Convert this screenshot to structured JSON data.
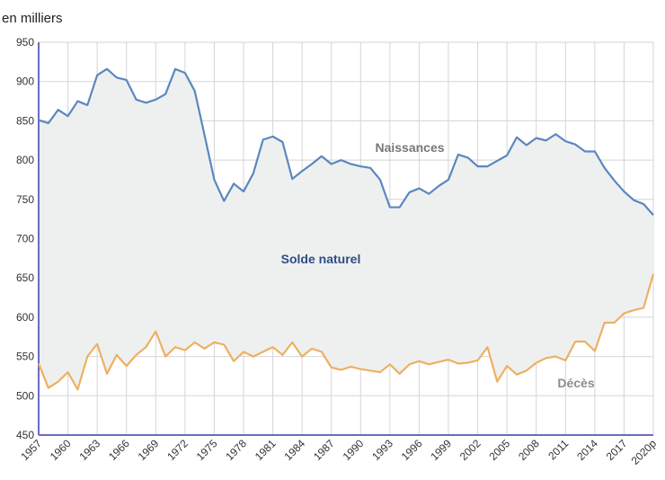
{
  "chart_data": {
    "type": "line",
    "unit_label": "en milliers",
    "ylim": [
      450,
      950
    ],
    "y_ticks": [
      450,
      500,
      550,
      600,
      650,
      700,
      750,
      800,
      850,
      900,
      950
    ],
    "x": [
      1957,
      1958,
      1959,
      1960,
      1961,
      1962,
      1963,
      1964,
      1965,
      1966,
      1967,
      1968,
      1969,
      1970,
      1971,
      1972,
      1973,
      1974,
      1975,
      1976,
      1977,
      1978,
      1979,
      1980,
      1981,
      1982,
      1983,
      1984,
      1985,
      1986,
      1987,
      1988,
      1989,
      1990,
      1991,
      1992,
      1993,
      1994,
      1995,
      1996,
      1997,
      1998,
      1999,
      2000,
      2001,
      2002,
      2003,
      2004,
      2005,
      2006,
      2007,
      2008,
      2009,
      2010,
      2011,
      2012,
      2013,
      2014,
      2015,
      2016,
      2017,
      2018,
      2019,
      2020
    ],
    "x_tick_labels": [
      "1957",
      "1960",
      "1963",
      "1966",
      "1969",
      "1972",
      "1975",
      "1978",
      "1981",
      "1984",
      "1987",
      "1990",
      "1993",
      "1996",
      "1999",
      "2002",
      "2005",
      "2008",
      "2011",
      "2014",
      "2017",
      "2020p"
    ],
    "x_tick_years": [
      1957,
      1960,
      1963,
      1966,
      1969,
      1972,
      1975,
      1978,
      1981,
      1984,
      1987,
      1990,
      1993,
      1996,
      1999,
      2002,
      2005,
      2008,
      2011,
      2014,
      2017,
      2020
    ],
    "grid": true,
    "series": [
      {
        "name": "Naissances",
        "color": "#5b87c0",
        "values": [
          851,
          847,
          864,
          856,
          875,
          870,
          908,
          916,
          905,
          902,
          877,
          873,
          877,
          884,
          916,
          911,
          888,
          832,
          775,
          748,
          770,
          760,
          783,
          826,
          830,
          823,
          776,
          786,
          795,
          805,
          795,
          800,
          795,
          792,
          790,
          775,
          740,
          740,
          759,
          764,
          757,
          767,
          775,
          807,
          803,
          792,
          792,
          799,
          806,
          829,
          819,
          828,
          825,
          833,
          824,
          820,
          811,
          811,
          790,
          774,
          760,
          749,
          744,
          730
        ]
      },
      {
        "name": "Décès",
        "color": "#eeb061",
        "values": [
          541,
          510,
          518,
          530,
          508,
          550,
          566,
          528,
          552,
          538,
          552,
          562,
          582,
          550,
          562,
          558,
          568,
          560,
          568,
          565,
          544,
          556,
          550,
          556,
          562,
          552,
          568,
          550,
          560,
          556,
          536,
          533,
          537,
          534,
          532,
          530,
          540,
          528,
          540,
          544,
          540,
          543,
          546,
          541,
          542,
          545,
          562,
          518,
          538,
          527,
          532,
          542,
          548,
          550,
          545,
          569,
          569,
          557,
          593,
          593,
          605,
          609,
          612,
          655
        ]
      }
    ],
    "annotations": {
      "naissances": "Naissances",
      "solde": "Solde naturel",
      "deces": "Décès"
    },
    "colors": {
      "area_fill": "#eef0f0",
      "axis": "#6b6bc0",
      "grid": "#d5d5d5",
      "naissances_label": "#777777",
      "solde_label": "#2f4c86",
      "deces_label": "#8c8c8c"
    }
  }
}
